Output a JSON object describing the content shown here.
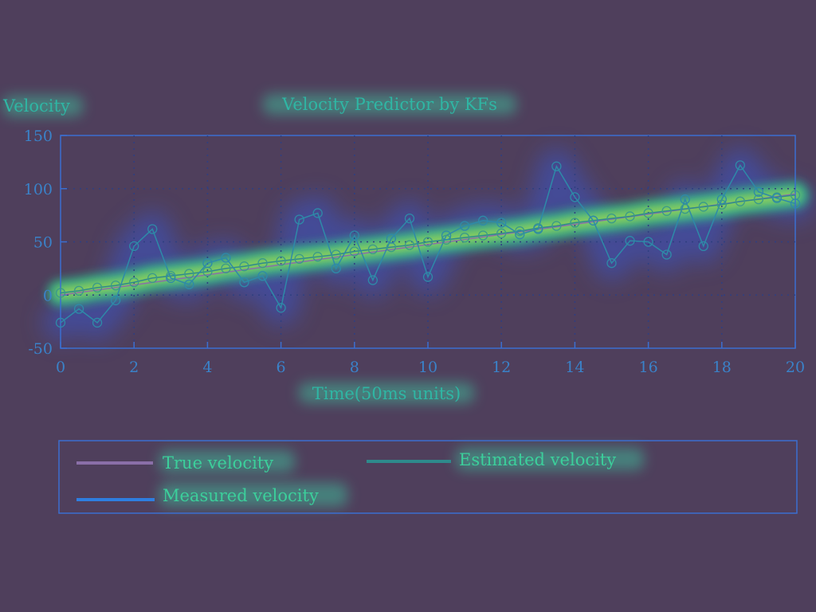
{
  "chart_data": {
    "type": "line",
    "title": "Velocity Predictor by KFs",
    "ylabel": "Velocity",
    "xlabel": "Time(50ms units)",
    "xlim": [
      0,
      20
    ],
    "ylim": [
      -50,
      150
    ],
    "xticks": [
      0,
      2,
      4,
      6,
      8,
      10,
      12,
      14,
      16,
      18,
      20
    ],
    "yticks": [
      -50,
      0,
      50,
      100,
      150
    ],
    "grid": true,
    "legend_position": "bottom",
    "series": [
      {
        "name": "True velocity",
        "color": "#8a6fa8",
        "marker": "none",
        "x": [
          0,
          20
        ],
        "y": [
          0,
          95
        ]
      },
      {
        "name": "Estimated velocity",
        "color": "#2e8a8c",
        "marker": "circle",
        "x": [
          0,
          0.5,
          1,
          1.5,
          2,
          2.5,
          3,
          3.5,
          4,
          4.5,
          5,
          5.5,
          6,
          6.5,
          7,
          7.5,
          8,
          8.5,
          9,
          9.5,
          10,
          10.5,
          11,
          11.5,
          12,
          12.5,
          13,
          13.5,
          14,
          14.5,
          15,
          15.5,
          16,
          16.5,
          17,
          17.5,
          18,
          18.5,
          19,
          19.5,
          20
        ],
        "y": [
          2,
          4,
          7,
          9,
          12,
          16,
          18,
          20,
          22,
          25,
          27,
          30,
          32,
          34,
          36,
          38,
          41,
          43,
          45,
          47,
          50,
          52,
          54,
          56,
          58,
          60,
          63,
          65,
          68,
          70,
          72,
          74,
          77,
          79,
          81,
          83,
          85,
          88,
          90,
          92,
          94
        ]
      },
      {
        "name": "Measured velocity",
        "color": "#2e8aa8",
        "marker": "circle",
        "x": [
          0,
          0.5,
          1,
          1.5,
          2,
          2.5,
          3,
          3.5,
          4,
          4.5,
          5,
          5.5,
          6,
          6.5,
          7,
          7.5,
          8,
          8.5,
          9,
          9.5,
          10,
          10.5,
          11,
          11.5,
          12,
          12.5,
          13,
          13.5,
          14,
          14.5,
          15,
          15.5,
          16,
          16.5,
          17,
          17.5,
          18,
          18.5,
          19,
          19.5,
          20
        ],
        "y": [
          -26,
          -13,
          -26,
          -5,
          46,
          62,
          16,
          10,
          30,
          35,
          12,
          18,
          -12,
          71,
          77,
          25,
          56,
          14,
          53,
          72,
          17,
          56,
          65,
          70,
          68,
          57,
          62,
          121,
          92,
          70,
          30,
          51,
          50,
          38,
          90,
          46,
          90,
          122,
          97,
          91,
          86
        ]
      }
    ],
    "colors": {
      "background": "#4f3f5c",
      "axis": "#3b6fd0",
      "grid_dots": "#2f3f80"
    }
  }
}
